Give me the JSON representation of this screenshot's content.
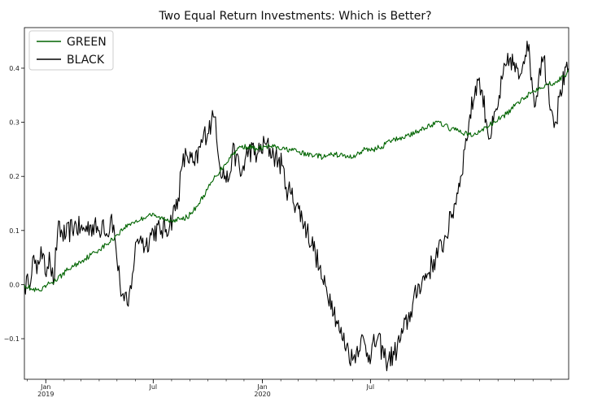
{
  "chart_data": {
    "type": "line",
    "title": "Two Equal Return Investments: Which is Better?",
    "xlabel": "",
    "ylabel": "",
    "x_range": [
      "2018-11-26",
      "2021-05-31"
    ],
    "ylim": [
      -0.175,
      0.475
    ],
    "y_ticks": [
      -0.1,
      0.0,
      0.1,
      0.2,
      0.3,
      0.4
    ],
    "y_tick_labels": [
      "−0.1",
      "0.0",
      "0.1",
      "0.2",
      "0.3",
      "0.4"
    ],
    "x_ticks": [
      {
        "date": "2019-01-01",
        "label": "Jan",
        "sub": "2019"
      },
      {
        "date": "2019-07-01",
        "label": "Jul",
        "sub": ""
      },
      {
        "date": "2020-01-01",
        "label": "Jan",
        "sub": "2020"
      },
      {
        "date": "2020-07-01",
        "label": "Jul",
        "sub": ""
      }
    ],
    "grid": false,
    "legend": "top-left",
    "colors": {
      "GREEN": "#006400",
      "BLACK": "#000000"
    },
    "series": [
      {
        "name": "GREEN",
        "x": [
          "2018-11-26",
          "2018-12-10",
          "2018-12-24",
          "2019-01-07",
          "2019-01-21",
          "2019-02-04",
          "2019-02-18",
          "2019-03-04",
          "2019-03-18",
          "2019-04-01",
          "2019-04-15",
          "2019-04-29",
          "2019-05-13",
          "2019-05-27",
          "2019-06-10",
          "2019-06-24",
          "2019-07-08",
          "2019-07-22",
          "2019-08-05",
          "2019-08-19",
          "2019-09-02",
          "2019-09-16",
          "2019-09-30",
          "2019-10-14",
          "2019-10-28",
          "2019-11-11",
          "2019-11-25",
          "2019-12-09",
          "2019-12-23",
          "2020-01-06",
          "2020-01-20",
          "2020-02-03",
          "2020-02-17",
          "2020-03-02",
          "2020-03-16",
          "2020-03-30",
          "2020-04-13",
          "2020-04-27",
          "2020-05-11",
          "2020-05-25",
          "2020-06-08",
          "2020-06-22",
          "2020-07-06",
          "2020-07-20",
          "2020-08-03",
          "2020-08-17",
          "2020-08-31",
          "2020-09-14",
          "2020-09-28",
          "2020-10-12",
          "2020-10-26",
          "2020-11-09",
          "2020-11-23",
          "2020-12-07",
          "2020-12-21",
          "2021-01-04",
          "2021-01-18",
          "2021-02-01",
          "2021-02-15",
          "2021-03-01",
          "2021-03-15",
          "2021-03-29",
          "2021-04-12",
          "2021-04-26",
          "2021-05-10",
          "2021-05-24",
          "2021-05-31"
        ],
        "y": [
          0.0,
          -0.01,
          -0.012,
          0.002,
          0.01,
          0.025,
          0.035,
          0.045,
          0.055,
          0.065,
          0.075,
          0.09,
          0.105,
          0.115,
          0.12,
          0.13,
          0.125,
          0.12,
          0.12,
          0.12,
          0.13,
          0.15,
          0.175,
          0.2,
          0.22,
          0.24,
          0.255,
          0.255,
          0.25,
          0.255,
          0.255,
          0.25,
          0.25,
          0.245,
          0.24,
          0.24,
          0.235,
          0.24,
          0.24,
          0.235,
          0.24,
          0.25,
          0.25,
          0.255,
          0.265,
          0.27,
          0.275,
          0.28,
          0.29,
          0.295,
          0.3,
          0.29,
          0.285,
          0.28,
          0.275,
          0.285,
          0.295,
          0.305,
          0.315,
          0.33,
          0.345,
          0.355,
          0.365,
          0.37,
          0.375,
          0.385,
          0.395
        ]
      },
      {
        "name": "BLACK",
        "x": [
          "2018-11-26",
          "2018-12-03",
          "2018-12-10",
          "2018-12-17",
          "2018-12-24",
          "2018-12-31",
          "2019-01-07",
          "2019-01-14",
          "2019-01-21",
          "2019-02-04",
          "2019-02-18",
          "2019-03-04",
          "2019-03-18",
          "2019-04-01",
          "2019-04-08",
          "2019-04-15",
          "2019-04-22",
          "2019-04-29",
          "2019-05-06",
          "2019-05-13",
          "2019-05-20",
          "2019-05-27",
          "2019-06-03",
          "2019-06-10",
          "2019-06-17",
          "2019-07-01",
          "2019-07-15",
          "2019-07-29",
          "2019-08-12",
          "2019-08-19",
          "2019-08-26",
          "2019-09-09",
          "2019-09-23",
          "2019-10-07",
          "2019-10-14",
          "2019-10-21",
          "2019-11-04",
          "2019-11-11",
          "2019-11-18",
          "2019-11-25",
          "2019-12-09",
          "2019-12-23",
          "2020-01-06",
          "2020-01-20",
          "2020-02-03",
          "2020-02-10",
          "2020-02-17",
          "2020-03-02",
          "2020-03-16",
          "2020-03-30",
          "2020-04-06",
          "2020-04-13",
          "2020-04-27",
          "2020-05-11",
          "2020-05-25",
          "2020-06-01",
          "2020-06-15",
          "2020-06-29",
          "2020-07-13",
          "2020-07-27",
          "2020-08-10",
          "2020-08-24",
          "2020-09-07",
          "2020-09-21",
          "2020-10-05",
          "2020-10-19",
          "2020-11-02",
          "2020-11-16",
          "2020-11-30",
          "2020-12-07",
          "2020-12-14",
          "2020-12-28",
          "2021-01-04",
          "2021-01-18",
          "2021-02-01",
          "2021-02-08",
          "2021-02-22",
          "2021-03-08",
          "2021-03-22",
          "2021-04-05",
          "2021-04-12",
          "2021-04-19",
          "2021-05-03",
          "2021-05-10",
          "2021-05-17",
          "2021-05-31"
        ],
        "y": [
          0.0,
          0.0,
          0.05,
          0.02,
          0.07,
          0.02,
          0.06,
          0.0,
          0.1,
          0.09,
          0.11,
          0.1,
          0.11,
          0.1,
          0.12,
          0.09,
          0.13,
          0.07,
          0.0,
          -0.03,
          -0.04,
          0.02,
          0.08,
          0.09,
          0.07,
          0.1,
          0.1,
          0.11,
          0.16,
          0.22,
          0.24,
          0.22,
          0.27,
          0.3,
          0.31,
          0.22,
          0.19,
          0.24,
          0.24,
          0.2,
          0.25,
          0.24,
          0.26,
          0.24,
          0.22,
          0.18,
          0.17,
          0.14,
          0.1,
          0.06,
          0.03,
          0.0,
          -0.03,
          -0.09,
          -0.12,
          -0.14,
          -0.1,
          -0.13,
          -0.1,
          -0.14,
          -0.13,
          -0.09,
          -0.05,
          0.0,
          0.02,
          0.05,
          0.08,
          0.13,
          0.2,
          0.25,
          0.3,
          0.38,
          0.36,
          0.27,
          0.33,
          0.38,
          0.42,
          0.38,
          0.45,
          0.33,
          0.4,
          0.42,
          0.32,
          0.3,
          0.36,
          0.4
        ]
      }
    ]
  }
}
